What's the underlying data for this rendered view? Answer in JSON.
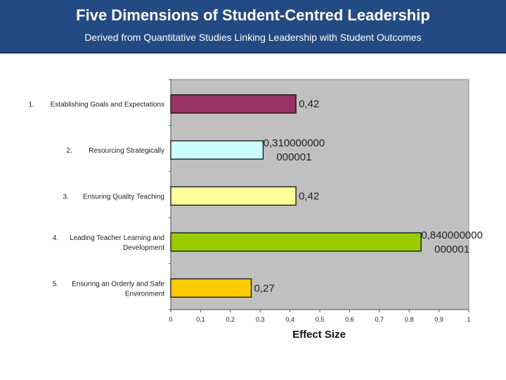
{
  "header": {
    "title": "Five Dimensions of Student-Centred Leadership",
    "subtitle": "Derived from Quantitative Studies Linking Leadership with Student Outcomes"
  },
  "chart_data": {
    "type": "bar",
    "orientation": "horizontal",
    "categories": [
      {
        "num": "1.",
        "lines": [
          "Establishing Goals and Expectations"
        ]
      },
      {
        "num": "2.",
        "lines": [
          "Resourcing Strategically"
        ]
      },
      {
        "num": "3.",
        "lines": [
          "Ensuring Quality Teaching"
        ]
      },
      {
        "num": "4.",
        "lines": [
          "Leading Teacher Learning and",
          "Development"
        ]
      },
      {
        "num": "5.",
        "lines": [
          "Ensuring an Orderly and Safe",
          "Environment"
        ]
      }
    ],
    "values": [
      0.42,
      0.31,
      0.42,
      0.84,
      0.27
    ],
    "data_labels": [
      [
        "0,42"
      ],
      [
        "0,310000000",
        "000001"
      ],
      [
        "0,42"
      ],
      [
        "0,840000000",
        "000001"
      ],
      [
        "0,27"
      ]
    ],
    "bar_colors": [
      "#993366",
      "#ccffff",
      "#ffff99",
      "#99cc00",
      "#ffcc00"
    ],
    "xlim": [
      0,
      1
    ],
    "xticks": [
      "0",
      "0,1",
      "0,2",
      "0,3",
      "0,4",
      "0,5",
      "0,6",
      "0,7",
      "0,8",
      "0,9",
      "1"
    ],
    "xlabel": "Effect Size",
    "plot_background": "#c0c0c0",
    "grid": false
  }
}
